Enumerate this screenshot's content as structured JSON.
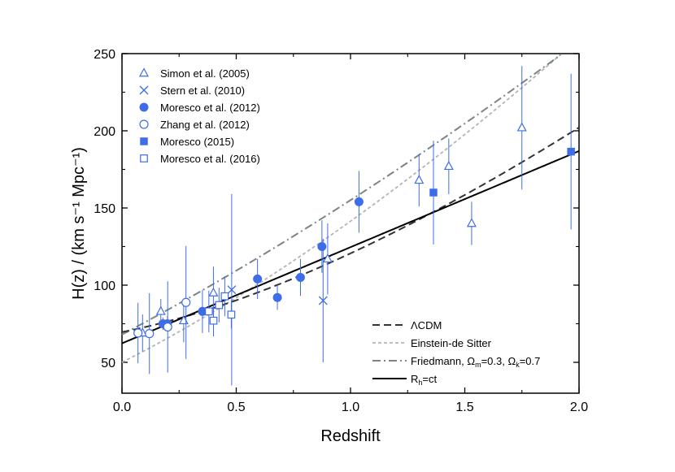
{
  "chart_data": {
    "type": "scatter",
    "xlabel": "Redshift",
    "ylabel": "H(z) / (km s⁻¹ Mpc⁻¹)",
    "xlim": [
      0.0,
      2.0
    ],
    "ylim": [
      30,
      250
    ],
    "xticks": [
      0.0,
      0.5,
      1.0,
      1.5,
      2.0
    ],
    "xtick_labels": [
      "0.0",
      "0.5",
      "1.0",
      "1.5",
      "2.0"
    ],
    "yticks": [
      50,
      100,
      150,
      200,
      250
    ],
    "ytick_labels": [
      "50",
      "100",
      "150",
      "200",
      "250"
    ],
    "grid": false,
    "marker_color": "#3f6de8",
    "data_series": [
      {
        "name": "Simon et al. (2005)",
        "marker": "triangle-open",
        "points": [
          {
            "x": 0.09,
            "y": 69,
            "err": 12
          },
          {
            "x": 0.17,
            "y": 83,
            "err": 8
          },
          {
            "x": 0.27,
            "y": 77,
            "err": 14
          },
          {
            "x": 0.4,
            "y": 95,
            "err": 17
          },
          {
            "x": 0.9,
            "y": 117,
            "err": 23
          },
          {
            "x": 1.3,
            "y": 168,
            "err": 17
          },
          {
            "x": 1.43,
            "y": 177,
            "err": 18
          },
          {
            "x": 1.53,
            "y": 140,
            "err": 14
          },
          {
            "x": 1.75,
            "y": 202,
            "err": 40
          }
        ]
      },
      {
        "name": "Stern et al. (2010)",
        "marker": "cross",
        "points": [
          {
            "x": 0.48,
            "y": 97,
            "err": 62
          },
          {
            "x": 0.88,
            "y": 90,
            "err": 40
          }
        ]
      },
      {
        "name": "Moresco et al. (2012)",
        "marker": "circle-filled",
        "points": [
          {
            "x": 0.179,
            "y": 75,
            "err": 4
          },
          {
            "x": 0.199,
            "y": 75,
            "err": 5
          },
          {
            "x": 0.352,
            "y": 83,
            "err": 14
          },
          {
            "x": 0.593,
            "y": 104,
            "err": 13
          },
          {
            "x": 0.68,
            "y": 92,
            "err": 8
          },
          {
            "x": 0.781,
            "y": 105,
            "err": 12
          },
          {
            "x": 0.875,
            "y": 125,
            "err": 17
          },
          {
            "x": 1.037,
            "y": 154,
            "err": 20
          }
        ]
      },
      {
        "name": "Zhang et al. (2012)",
        "marker": "circle-open",
        "points": [
          {
            "x": 0.07,
            "y": 69,
            "err": 19.6
          },
          {
            "x": 0.12,
            "y": 68.6,
            "err": 26.2
          },
          {
            "x": 0.2,
            "y": 72.9,
            "err": 29.6
          },
          {
            "x": 0.28,
            "y": 88.8,
            "err": 36.6
          }
        ]
      },
      {
        "name": "Moresco (2015)",
        "marker": "square-filled",
        "points": [
          {
            "x": 1.363,
            "y": 160,
            "err": 33.6
          },
          {
            "x": 1.965,
            "y": 186.5,
            "err": 50.4
          }
        ]
      },
      {
        "name": "Moresco et al. (2016)",
        "marker": "square-open",
        "points": [
          {
            "x": 0.3802,
            "y": 83,
            "err": 13.5
          },
          {
            "x": 0.4004,
            "y": 77,
            "err": 10.2
          },
          {
            "x": 0.4247,
            "y": 87.1,
            "err": 11.2
          },
          {
            "x": 0.4497,
            "y": 92.8,
            "err": 12.9
          },
          {
            "x": 0.4783,
            "y": 80.9,
            "err": 9
          }
        ]
      }
    ],
    "model_curves": [
      {
        "name": "ΛCDM",
        "label_main": "ΛCDM",
        "label_sub": "",
        "style": "dashed",
        "color": "#333333",
        "formula": "lcdm",
        "H0": 69.6,
        "Om": 0.286
      },
      {
        "name": "Einstein-de Sitter",
        "label_main": "Einstein-de Sitter",
        "label_sub": "",
        "style": "dotted-short",
        "color": "#b4b4b4",
        "formula": "eds",
        "H0": 50
      },
      {
        "name": "Friedmann, Ωm=0.3, Ωk=0.7",
        "label_main": "Friedmann, Ω",
        "label_sub": "m",
        "label_rest": "=0.3, Ω",
        "label_sub2": "k",
        "label_end": "=0.7",
        "style": "dash-dot",
        "color": "#7a8585",
        "formula": "open",
        "H0": 68,
        "Om": 0.3,
        "Ok": 0.7
      },
      {
        "name": "Rh=ct",
        "label_main": "R",
        "label_sub": "h",
        "label_end": "=ct",
        "style": "solid",
        "color": "#000000",
        "formula": "rhct",
        "H0": 62.3
      }
    ]
  }
}
